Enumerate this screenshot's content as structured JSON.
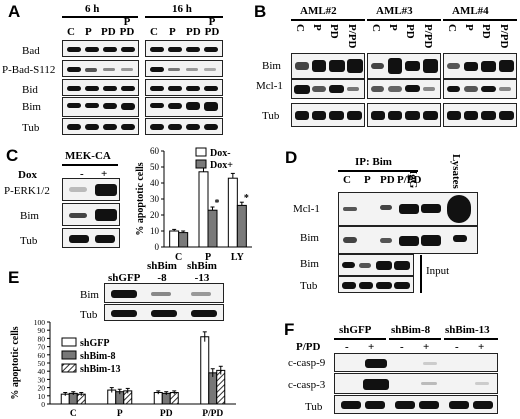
{
  "panels": [
    "A",
    "B",
    "C",
    "D",
    "E",
    "F"
  ],
  "panel_a": {
    "time_labels": [
      "6 h",
      "16 h"
    ],
    "lanes": [
      "C",
      "P",
      "PD",
      "P PD"
    ],
    "rows": [
      "Bad",
      "P-Bad-S112",
      "Bid",
      "Bim",
      "Tub"
    ]
  },
  "panel_b": {
    "groups": [
      "AML#2",
      "AML#3",
      "AML#4"
    ],
    "lanes": [
      "C",
      "P",
      "PD",
      "P/PD"
    ],
    "rows": [
      "Bim",
      "Mcl-1",
      "Tub"
    ]
  },
  "panel_c": {
    "title": "MEK-CA",
    "dox_label": "Dox",
    "dox_states": [
      "-",
      "+"
    ],
    "rows": [
      "P-ERK1/2",
      "Bim",
      "Tub"
    ],
    "significance_mark": "*",
    "chart_data": {
      "type": "bar",
      "categories": [
        "C",
        "P",
        "LY"
      ],
      "series": [
        {
          "name": "Dox-",
          "values": [
            10,
            47,
            43
          ],
          "errors": [
            1,
            3,
            3
          ],
          "color": "#ffffff"
        },
        {
          "name": "Dox+",
          "values": [
            9,
            23,
            26
          ],
          "errors": [
            1,
            2,
            2
          ],
          "color": "#7a7a7a"
        }
      ],
      "ylabel": "% apoptotic cells",
      "ylim": [
        0,
        60
      ],
      "yticks": [
        "0",
        "10",
        "20",
        "30",
        "40",
        "50",
        "60"
      ],
      "legend": "top-right"
    }
  },
  "panel_d": {
    "ip_label": "IP: Bim",
    "lanes": [
      "C",
      "P",
      "PD",
      "P/PD",
      "IgG",
      "Lysates"
    ],
    "rows": [
      "Mcl-1",
      "Bim",
      "Bim",
      "Tub"
    ],
    "input_label": "Input"
  },
  "panel_e": {
    "lanes": [
      "shGFP",
      "shBim -8",
      "shBim -13"
    ],
    "rows": [
      "Bim",
      "Tub"
    ],
    "chart_data": {
      "type": "bar",
      "categories": [
        "C",
        "P",
        "PD",
        "P/PD"
      ],
      "series": [
        {
          "name": "shGFP",
          "values": [
            12,
            17,
            14,
            82
          ],
          "errors": [
            2,
            3,
            2,
            6
          ],
          "color": "#ffffff"
        },
        {
          "name": "shBim-8",
          "values": [
            13,
            15,
            13,
            38
          ],
          "errors": [
            2,
            3,
            2,
            5
          ],
          "color": "#777777"
        },
        {
          "name": "shBim-13",
          "values": [
            12,
            16,
            14,
            41
          ],
          "errors": [
            2,
            3,
            2,
            5
          ],
          "color": "hatched"
        }
      ],
      "ylabel": "% apoptotic cells",
      "ylim": [
        0,
        100
      ],
      "yticks": [
        "0",
        "10",
        "20",
        "30",
        "40",
        "50",
        "60",
        "70",
        "80",
        "90",
        "100"
      ],
      "legend": "top-left"
    }
  },
  "panel_f": {
    "groups": [
      "shGFP",
      "shBim-8",
      "shBim-13"
    ],
    "treatment_label": "P/PD",
    "states": [
      "-",
      "+",
      "-",
      "+",
      "-",
      "+"
    ],
    "rows": [
      "c-casp-9",
      "c-casp-3",
      "Tub"
    ]
  }
}
